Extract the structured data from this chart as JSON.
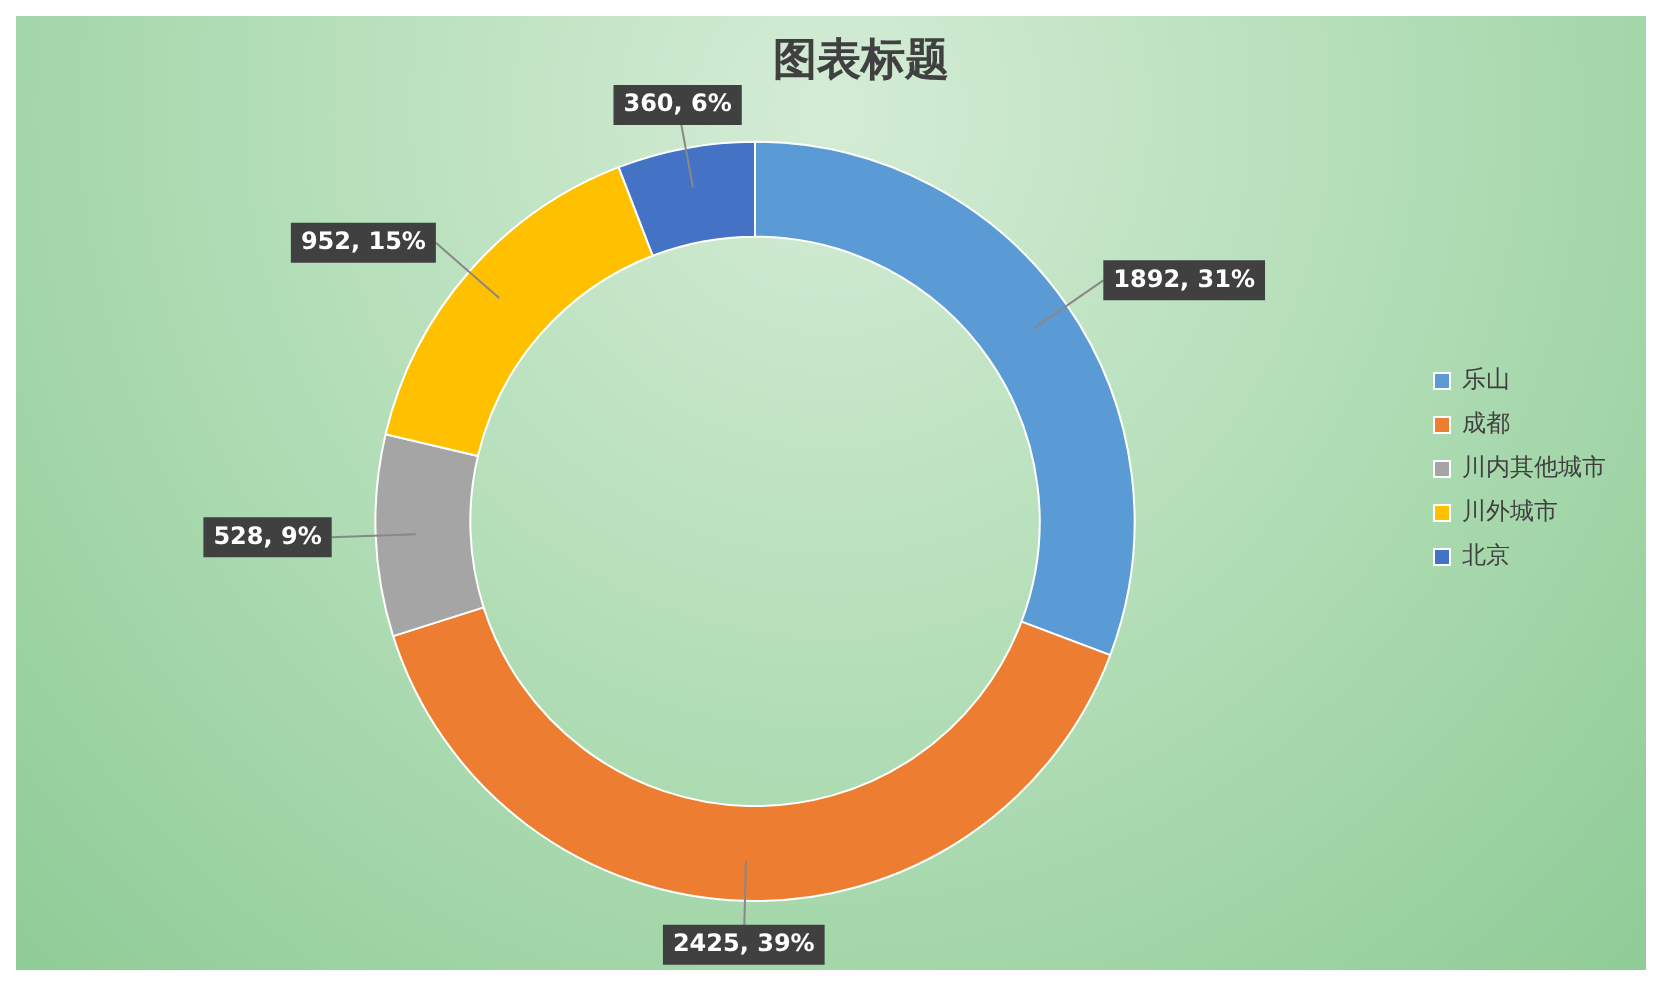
{
  "chart_data": {
    "type": "donut",
    "title": "图表标题",
    "categories": [
      "乐山",
      "成都",
      "川内其他城市",
      "川外城市",
      "北京"
    ],
    "values": [
      1892,
      2425,
      528,
      952,
      360
    ],
    "colors": [
      "#5b9bd5",
      "#ed7d31",
      "#a5a5a5",
      "#ffc000",
      "#4472c4"
    ],
    "value_labels": [
      "1892, 31%",
      "2425, 39%",
      "528, 9%",
      "952, 15%",
      "360, 6%"
    ],
    "legend": "right"
  }
}
